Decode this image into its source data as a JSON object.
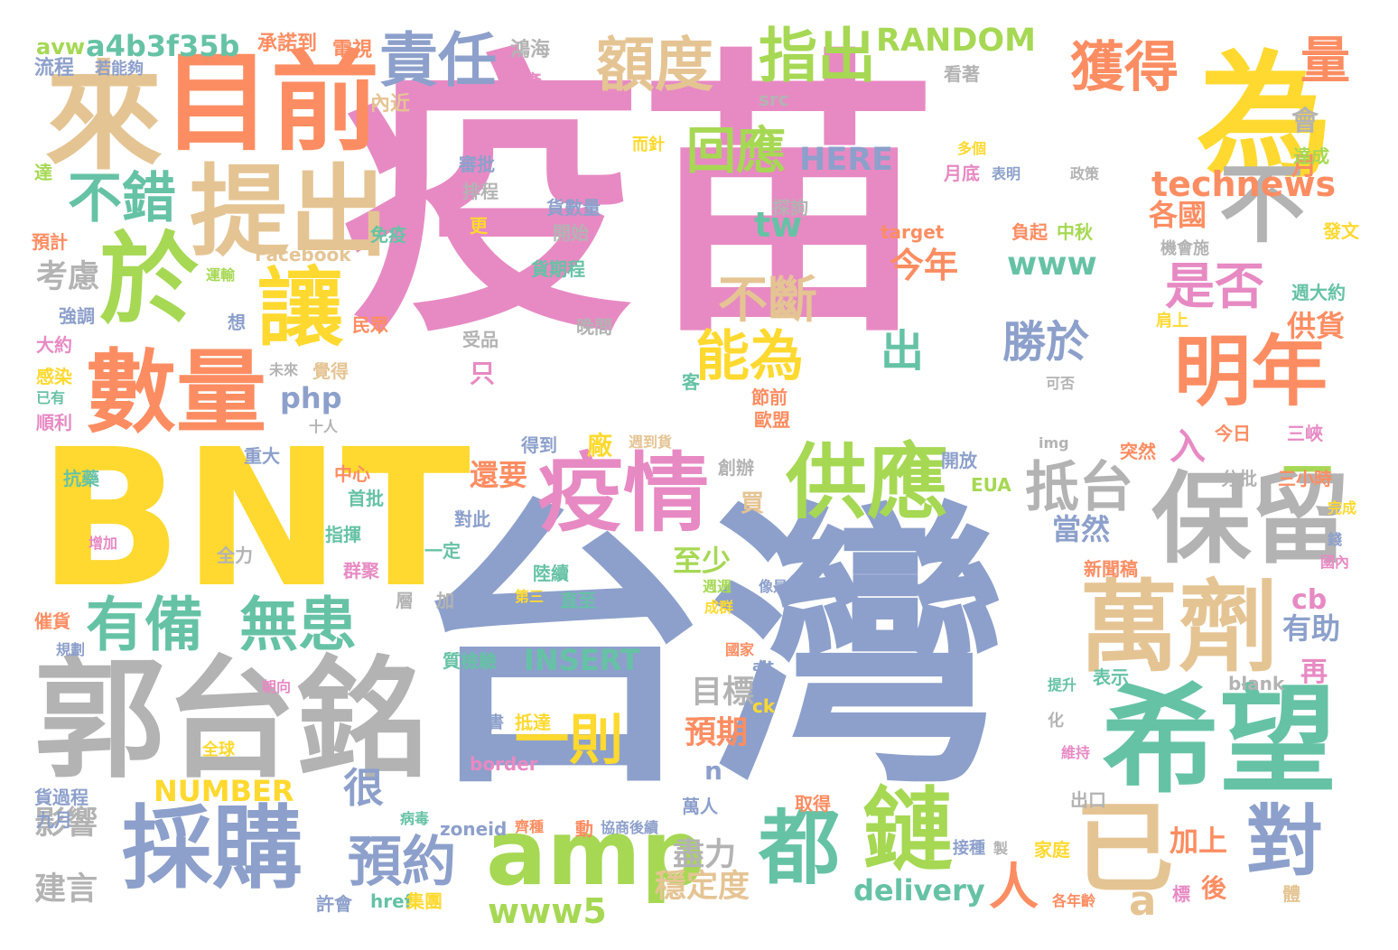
{
  "palette": {
    "pink": "#e78ac3",
    "blue": "#8da0cb",
    "yellow": "#ffd92f",
    "green": "#66c2a5",
    "lime": "#a6d854",
    "orange": "#fc8d62",
    "tan": "#e5c494",
    "gray": "#b3b3b3"
  },
  "words": [
    {
      "text": "疫苗",
      "color": "pink"
    },
    {
      "text": "台灣",
      "color": "blue"
    },
    {
      "text": "BNT",
      "color": "yellow"
    },
    {
      "text": "郭台銘",
      "color": "gray"
    },
    {
      "text": "希望",
      "color": "green"
    },
    {
      "text": "為",
      "color": "yellow"
    },
    {
      "text": "目前",
      "color": "orange"
    },
    {
      "text": "來",
      "color": "tan"
    },
    {
      "text": "於",
      "color": "lime"
    },
    {
      "text": "數量",
      "color": "orange"
    },
    {
      "text": "提出",
      "color": "tan"
    },
    {
      "text": "萬劑",
      "color": "tan"
    },
    {
      "text": "採購",
      "color": "blue"
    },
    {
      "text": "amp",
      "color": "lime"
    },
    {
      "text": "保留",
      "color": "gray"
    },
    {
      "text": "供應",
      "color": "lime"
    },
    {
      "text": "疫情",
      "color": "pink"
    },
    {
      "text": "明年",
      "color": "orange"
    },
    {
      "text": "不",
      "color": "gray"
    },
    {
      "text": "讓",
      "color": "yellow"
    },
    {
      "text": "已",
      "color": "tan"
    },
    {
      "text": "鏈",
      "color": "lime"
    },
    {
      "text": "都",
      "color": "green"
    },
    {
      "text": "對",
      "color": "blue"
    },
    {
      "text": "有備",
      "color": "green"
    },
    {
      "text": "無患",
      "color": "green"
    },
    {
      "text": "責任",
      "color": "blue"
    },
    {
      "text": "額度",
      "color": "tan"
    },
    {
      "text": "指出",
      "color": "lime"
    },
    {
      "text": "獲得",
      "color": "orange"
    },
    {
      "text": "量",
      "color": "orange"
    },
    {
      "text": "不錯",
      "color": "green"
    },
    {
      "text": "回應",
      "color": "lime"
    },
    {
      "text": "抵台",
      "color": "gray"
    },
    {
      "text": "能為",
      "color": "yellow"
    },
    {
      "text": "一則",
      "color": "yellow"
    },
    {
      "text": "預約",
      "color": "blue"
    },
    {
      "text": "是否",
      "color": "pink"
    },
    {
      "text": "不斷",
      "color": "tan"
    },
    {
      "text": "technews",
      "color": "orange"
    },
    {
      "text": "a4b3f35b",
      "color": "green"
    },
    {
      "text": "RANDOM",
      "color": "lime"
    },
    {
      "text": "HERE",
      "color": "blue"
    },
    {
      "text": "www",
      "color": "green"
    },
    {
      "text": "勝於",
      "color": "blue"
    },
    {
      "text": "出",
      "color": "green"
    },
    {
      "text": "今年",
      "color": "orange"
    },
    {
      "text": "www5",
      "color": "lime"
    },
    {
      "text": "delivery",
      "color": "green"
    },
    {
      "text": "NUMBER",
      "color": "yellow"
    },
    {
      "text": "INSERT",
      "color": "green"
    },
    {
      "text": "php",
      "color": "blue"
    },
    {
      "text": "tw",
      "color": "green"
    },
    {
      "text": "人",
      "color": "orange"
    },
    {
      "text": "a",
      "color": "tan"
    },
    {
      "text": "一",
      "color": "lime"
    },
    {
      "text": "入",
      "color": "pink"
    },
    {
      "text": "很",
      "color": "blue"
    },
    {
      "text": "考慮",
      "color": "gray"
    },
    {
      "text": "影響",
      "color": "gray"
    },
    {
      "text": "建言",
      "color": "gray"
    },
    {
      "text": "盡力",
      "color": "gray"
    },
    {
      "text": "穩定度",
      "color": "tan"
    },
    {
      "text": "目標",
      "color": "gray"
    },
    {
      "text": "預期",
      "color": "orange"
    },
    {
      "text": "當然",
      "color": "blue"
    },
    {
      "text": "各國",
      "color": "orange"
    },
    {
      "text": "供貨",
      "color": "orange"
    },
    {
      "text": "有助",
      "color": "blue"
    },
    {
      "text": "加上",
      "color": "orange"
    },
    {
      "text": "後",
      "color": "orange"
    },
    {
      "text": "再",
      "color": "pink"
    },
    {
      "text": "cb",
      "color": "pink"
    },
    {
      "text": "還要",
      "color": "orange"
    },
    {
      "text": "至少",
      "color": "lime"
    },
    {
      "text": "會",
      "color": "gray"
    },
    {
      "text": "月",
      "color": "orange"
    },
    {
      "text": "只",
      "color": "pink"
    },
    {
      "text": "廠",
      "color": "yellow"
    },
    {
      "text": "n",
      "color": "blue"
    },
    {
      "text": "買",
      "color": "tan"
    },
    {
      "text": "avw",
      "color": "lime"
    },
    {
      "text": "流程",
      "color": "blue"
    },
    {
      "text": "若能夠",
      "color": "blue"
    },
    {
      "text": "承諾到",
      "color": "orange"
    },
    {
      "text": "電視",
      "color": "orange"
    },
    {
      "text": "鴻海",
      "color": "gray"
    },
    {
      "text": "投產",
      "color": "pink"
    },
    {
      "text": "src",
      "color": "gray"
    },
    {
      "text": "內近",
      "color": "tan"
    },
    {
      "text": "看著",
      "color": "gray"
    },
    {
      "text": "而針",
      "color": "yellow"
    },
    {
      "text": "審批",
      "color": "blue"
    },
    {
      "text": "排程",
      "color": "gray"
    },
    {
      "text": "多個",
      "color": "yellow"
    },
    {
      "text": "月底",
      "color": "pink"
    },
    {
      "text": "表明",
      "color": "blue"
    },
    {
      "text": "政策",
      "color": "gray"
    },
    {
      "text": "達成",
      "color": "lime"
    },
    {
      "text": "達",
      "color": "lime"
    },
    {
      "text": "預計",
      "color": "orange"
    },
    {
      "text": "貨數量",
      "color": "blue"
    },
    {
      "text": "更",
      "color": "yellow"
    },
    {
      "text": "開始",
      "color": "gray"
    },
    {
      "text": "探詢",
      "color": "gray"
    },
    {
      "text": "target",
      "color": "orange"
    },
    {
      "text": "負起",
      "color": "orange"
    },
    {
      "text": "中秋",
      "color": "lime"
    },
    {
      "text": "發文",
      "color": "yellow"
    },
    {
      "text": "Facebook",
      "color": "tan"
    },
    {
      "text": "免疫",
      "color": "green"
    },
    {
      "text": "機會施",
      "color": "gray"
    },
    {
      "text": "貨期程",
      "color": "green"
    },
    {
      "text": "運輸",
      "color": "lime"
    },
    {
      "text": "週大約",
      "color": "green"
    },
    {
      "text": "強調",
      "color": "blue"
    },
    {
      "text": "想",
      "color": "blue"
    },
    {
      "text": "民眾",
      "color": "orange"
    },
    {
      "text": "肩上",
      "color": "yellow"
    },
    {
      "text": "大約",
      "color": "pink"
    },
    {
      "text": "受品",
      "color": "gray"
    },
    {
      "text": "晚間",
      "color": "gray"
    },
    {
      "text": "感染",
      "color": "yellow"
    },
    {
      "text": "未來",
      "color": "gray"
    },
    {
      "text": "覺得",
      "color": "tan"
    },
    {
      "text": "已有",
      "color": "green"
    },
    {
      "text": "順利",
      "color": "pink"
    },
    {
      "text": "客",
      "color": "green"
    },
    {
      "text": "節前",
      "color": "orange"
    },
    {
      "text": "可否",
      "color": "gray"
    },
    {
      "text": "十人",
      "color": "gray"
    },
    {
      "text": "歐盟",
      "color": "orange"
    },
    {
      "text": "今日",
      "color": "orange"
    },
    {
      "text": "三峽",
      "color": "pink"
    },
    {
      "text": "重大",
      "color": "blue"
    },
    {
      "text": "得到",
      "color": "blue"
    },
    {
      "text": "週到貨",
      "color": "tan"
    },
    {
      "text": "img",
      "color": "gray"
    },
    {
      "text": "突然",
      "color": "orange"
    },
    {
      "text": "抗藥",
      "color": "green"
    },
    {
      "text": "中心",
      "color": "orange"
    },
    {
      "text": "首批",
      "color": "green"
    },
    {
      "text": "創辦",
      "color": "gray"
    },
    {
      "text": "開放",
      "color": "blue"
    },
    {
      "text": "分批",
      "color": "gray"
    },
    {
      "text": "三小時",
      "color": "orange"
    },
    {
      "text": "EUA",
      "color": "lime"
    },
    {
      "text": "完成",
      "color": "yellow"
    },
    {
      "text": "指揮",
      "color": "green"
    },
    {
      "text": "增加",
      "color": "pink"
    },
    {
      "text": "對此",
      "color": "blue"
    },
    {
      "text": "全力",
      "color": "gray"
    },
    {
      "text": "一定",
      "color": "green"
    },
    {
      "text": "群聚",
      "color": "pink"
    },
    {
      "text": "陸續",
      "color": "green"
    },
    {
      "text": "新聞稿",
      "color": "orange"
    },
    {
      "text": "國內",
      "color": "pink"
    },
    {
      "text": "催貨",
      "color": "orange"
    },
    {
      "text": "層",
      "color": "gray"
    },
    {
      "text": "加",
      "color": "gray"
    },
    {
      "text": "第三",
      "color": "yellow"
    },
    {
      "text": "直至",
      "color": "green"
    },
    {
      "text": "週週",
      "color": "lime"
    },
    {
      "text": "像是",
      "color": "blue"
    },
    {
      "text": "成群",
      "color": "yellow"
    },
    {
      "text": "規劃",
      "color": "blue"
    },
    {
      "text": "國家",
      "color": "orange"
    },
    {
      "text": "朝向",
      "color": "pink"
    },
    {
      "text": "質檢驗",
      "color": "green"
    },
    {
      "text": "alt",
      "color": "blue"
    },
    {
      "text": "表示",
      "color": "green"
    },
    {
      "text": "blank",
      "color": "gray"
    },
    {
      "text": "提升",
      "color": "green"
    },
    {
      "text": "ck",
      "color": "yellow"
    },
    {
      "text": "書",
      "color": "blue"
    },
    {
      "text": "抵達",
      "color": "yellow"
    },
    {
      "text": "化",
      "color": "gray"
    },
    {
      "text": "全球",
      "color": "yellow"
    },
    {
      "text": "border",
      "color": "pink"
    },
    {
      "text": "維持",
      "color": "pink"
    },
    {
      "text": "貨過程",
      "color": "blue"
    },
    {
      "text": "出口",
      "color": "gray"
    },
    {
      "text": "萬人",
      "color": "blue"
    },
    {
      "text": "取得",
      "color": "orange"
    },
    {
      "text": "九月",
      "color": "blue"
    },
    {
      "text": "病毒",
      "color": "green"
    },
    {
      "text": "zoneid",
      "color": "blue"
    },
    {
      "text": "齊種",
      "color": "orange"
    },
    {
      "text": "動",
      "color": "orange"
    },
    {
      "text": "協商後續",
      "color": "blue"
    },
    {
      "text": "接種",
      "color": "blue"
    },
    {
      "text": "製",
      "color": "gray"
    },
    {
      "text": "家庭",
      "color": "yellow"
    },
    {
      "text": "許會",
      "color": "blue"
    },
    {
      "text": "href",
      "color": "green"
    },
    {
      "text": "集團",
      "color": "yellow"
    },
    {
      "text": "各年齡",
      "color": "orange"
    },
    {
      "text": "標",
      "color": "pink"
    },
    {
      "text": "體",
      "color": "tan"
    },
    {
      "text": "錢",
      "color": "blue"
    }
  ]
}
